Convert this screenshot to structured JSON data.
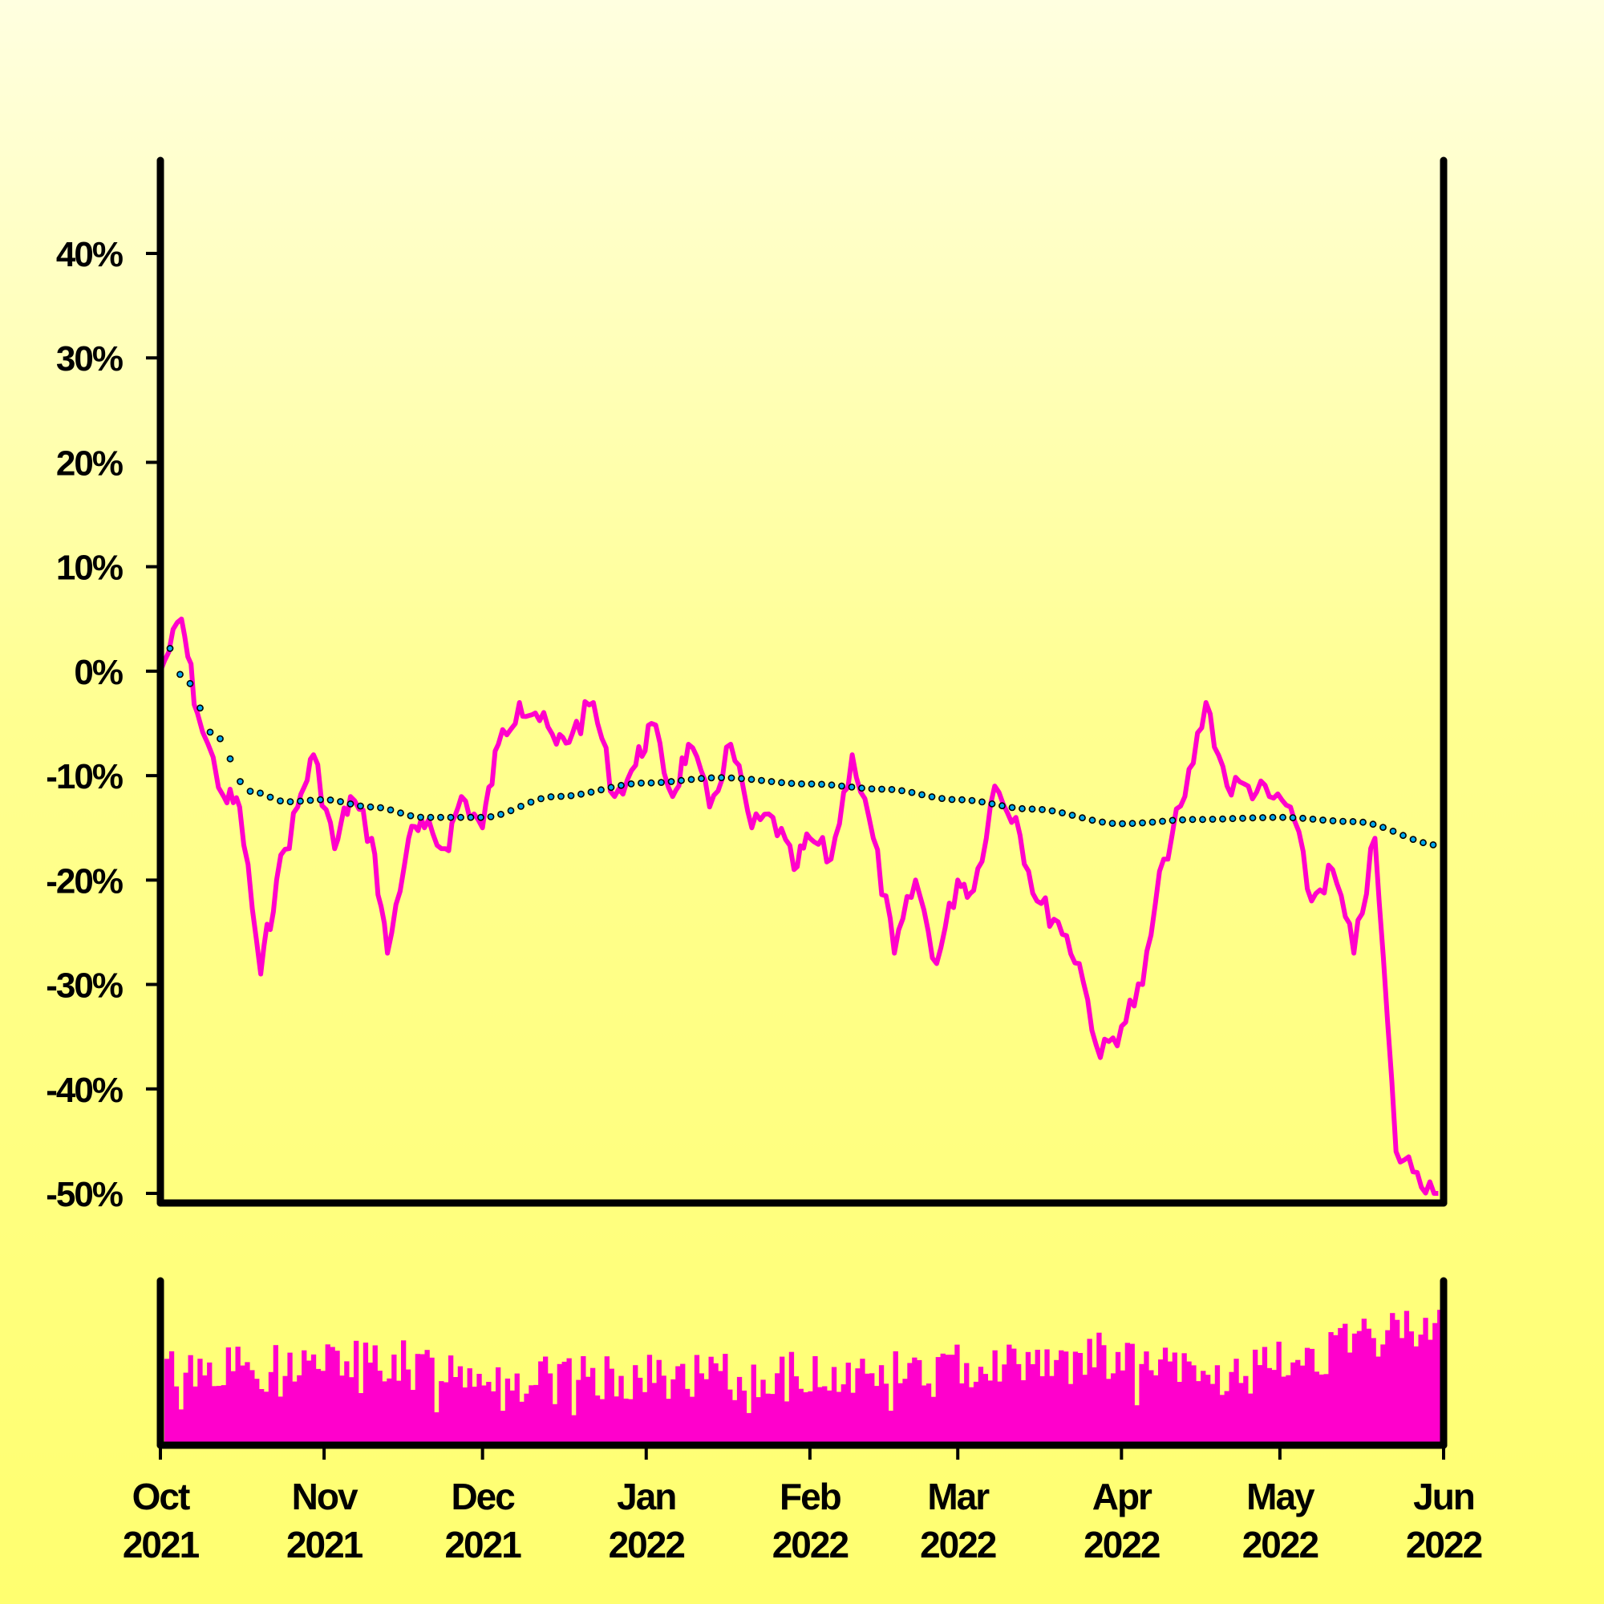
{
  "chart_data": [
    {
      "type": "line",
      "title": "",
      "xlabel": "",
      "ylabel": "",
      "ylim": [
        -50,
        50
      ],
      "y_ticks": [
        "40%",
        "30%",
        "20%",
        "10%",
        "0%",
        "-10%",
        "-20%",
        "-30%",
        "-40%",
        "-50%"
      ],
      "y_tick_values": [
        40,
        30,
        20,
        10,
        0,
        -10,
        -20,
        -30,
        -40,
        -50
      ],
      "x_range": [
        "2021-10-01",
        "2022-06-01"
      ],
      "grid": false,
      "colors": {
        "price": "#ff00cc",
        "trend": "#00aaee",
        "trend_outline": "#000000",
        "axis": "#000000"
      },
      "series": [
        {
          "key": "price",
          "style": "solid",
          "x": [
            "2021-10-01",
            "2021-10-05",
            "2021-10-08",
            "2021-10-13",
            "2021-10-16",
            "2021-10-20",
            "2021-10-23",
            "2021-10-27",
            "2021-10-30",
            "2021-11-03",
            "2021-11-06",
            "2021-11-10",
            "2021-11-13",
            "2021-11-17",
            "2021-11-20",
            "2021-11-24",
            "2021-11-27",
            "2021-12-01",
            "2021-12-04",
            "2021-12-08",
            "2021-12-11",
            "2021-12-15",
            "2021-12-18",
            "2021-12-22",
            "2021-12-26",
            "2021-12-30",
            "2022-01-02",
            "2022-01-06",
            "2022-01-09",
            "2022-01-13",
            "2022-01-17",
            "2022-01-21",
            "2022-01-25",
            "2022-01-29",
            "2022-02-01",
            "2022-02-05",
            "2022-02-09",
            "2022-02-13",
            "2022-02-17",
            "2022-02-21",
            "2022-02-25",
            "2022-03-01",
            "2022-03-04",
            "2022-03-08",
            "2022-03-12",
            "2022-03-16",
            "2022-03-20",
            "2022-03-24",
            "2022-03-28",
            "2022-04-01",
            "2022-04-05",
            "2022-04-09",
            "2022-04-13",
            "2022-04-17",
            "2022-04-21",
            "2022-04-25",
            "2022-04-29",
            "2022-05-03",
            "2022-05-07",
            "2022-05-11",
            "2022-05-15",
            "2022-05-19",
            "2022-05-23",
            "2022-05-27",
            "2022-05-31"
          ],
          "values": [
            0,
            5,
            -4,
            -12,
            -13,
            -29,
            -20,
            -13,
            -8,
            -17,
            -12,
            -16,
            -27,
            -16,
            -15,
            -17,
            -12,
            -15,
            -7,
            -3,
            -4,
            -7,
            -6,
            -3,
            -12,
            -9,
            -5,
            -12,
            -7,
            -13,
            -7,
            -15,
            -14,
            -19,
            -16,
            -18,
            -8,
            -16,
            -27,
            -20,
            -28,
            -20,
            -21,
            -11,
            -14,
            -22,
            -24,
            -28,
            -37,
            -34,
            -30,
            -18,
            -12,
            -3,
            -11,
            -11,
            -12,
            -13,
            -22,
            -19,
            -27,
            -16,
            -46,
            -48,
            -50
          ]
        },
        {
          "key": "trend",
          "style": "dotted",
          "x": [
            "2021-10-01",
            "2021-10-06",
            "2021-10-11",
            "2021-10-18",
            "2021-10-25",
            "2021-11-01",
            "2021-11-10",
            "2021-11-20",
            "2021-12-01",
            "2021-12-15",
            "2022-01-01",
            "2022-01-15",
            "2022-02-01",
            "2022-02-15",
            "2022-03-01",
            "2022-03-15",
            "2022-04-01",
            "2022-04-15",
            "2022-05-01",
            "2022-05-15",
            "2022-06-01"
          ],
          "values": [
            3.5,
            -1,
            -6,
            -11.5,
            -12.5,
            -12.3,
            -13,
            -14,
            -14,
            -12,
            -10.7,
            -10.2,
            -10.8,
            -11.3,
            -12.3,
            -13.2,
            -14.6,
            -14.2,
            -14,
            -14.4,
            -16.7
          ]
        }
      ],
      "x_ticks": [
        {
          "date": "2021-10-01",
          "month": "Oct",
          "year": "2021"
        },
        {
          "date": "2021-11-01",
          "month": "Nov",
          "year": "2021"
        },
        {
          "date": "2021-12-01",
          "month": "Dec",
          "year": "2021"
        },
        {
          "date": "2022-01-01",
          "month": "Jan",
          "year": "2022"
        },
        {
          "date": "2022-02-01",
          "month": "Feb",
          "year": "2022"
        },
        {
          "date": "2022-03-01",
          "month": "Mar",
          "year": "2022"
        },
        {
          "date": "2022-04-01",
          "month": "Apr",
          "year": "2022"
        },
        {
          "date": "2022-05-01",
          "month": "May",
          "year": "2022"
        },
        {
          "date": "2022-06-01",
          "month": "Jun",
          "year": "2022"
        }
      ]
    },
    {
      "type": "bar",
      "y_axis": "unlabeled",
      "color": "#ff00cc",
      "x_range": [
        "2021-10-01",
        "2022-06-01"
      ],
      "trend_points": [
        [
          "2021-10-01",
          0.46
        ],
        [
          "2021-11-10",
          0.52
        ],
        [
          "2021-12-15",
          0.4
        ],
        [
          "2022-02-15",
          0.44
        ],
        [
          "2022-03-25",
          0.56
        ],
        [
          "2022-04-20",
          0.4
        ],
        [
          "2022-05-15",
          0.62
        ],
        [
          "2022-06-01",
          0.8
        ]
      ]
    }
  ]
}
